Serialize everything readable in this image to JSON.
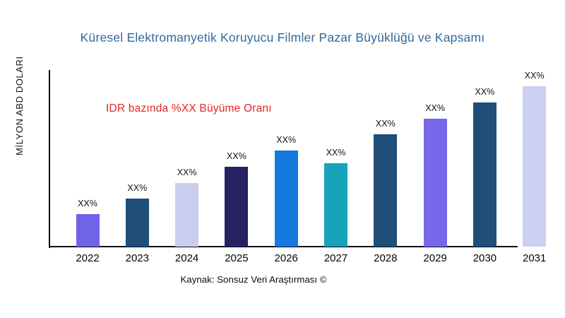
{
  "title": "Küresel Elektromanyetik Koruyucu Filmler Pazar Büyüklüğü ve Kapsamı",
  "title_color": "#2f6a9e",
  "y_axis_label": "MİLYON ABD DOLARI",
  "annotation": {
    "text": "IDR bazında %XX Büyüme Oranı",
    "color": "#e5252a"
  },
  "source": "Kaynak: Sonsuz Veri Araştırması ©",
  "chart_data": {
    "type": "bar",
    "title": "Küresel Elektromanyetik Koruyucu Filmler Pazar Büyüklüğü ve Kapsamı",
    "xlabel": "",
    "ylabel": "MİLYON ABD DOLARI",
    "grid": false,
    "legend": false,
    "categories": [
      "2022",
      "2023",
      "2024",
      "2025",
      "2026",
      "2027",
      "2028",
      "2029",
      "2030",
      "2031"
    ],
    "value_labels": [
      "XX%",
      "XX%",
      "XX%",
      "XX%",
      "XX%",
      "XX%",
      "XX%",
      "XX%",
      "XX%",
      "XX%"
    ],
    "bars": [
      {
        "year": "2022",
        "label": "XX%",
        "color": "#6f63e8",
        "height_pct": 18.4
      },
      {
        "year": "2023",
        "label": "XX%",
        "color": "#1f4e79",
        "height_pct": 27.2
      },
      {
        "year": "2024",
        "label": "XX%",
        "color": "#c9cdf0",
        "height_pct": 36.0
      },
      {
        "year": "2025",
        "label": "XX%",
        "color": "#252163",
        "height_pct": 45.2
      },
      {
        "year": "2026",
        "label": "XX%",
        "color": "#147ae0",
        "height_pct": 54.4
      },
      {
        "year": "2027",
        "label": "XX%",
        "color": "#17a3ba",
        "height_pct": 47.2
      },
      {
        "year": "2028",
        "label": "XX%",
        "color": "#1f4e79",
        "height_pct": 63.6
      },
      {
        "year": "2029",
        "label": "XX%",
        "color": "#7767e9",
        "height_pct": 72.4
      },
      {
        "year": "2030",
        "label": "XX%",
        "color": "#1f4e79",
        "height_pct": 81.6
      },
      {
        "year": "2031",
        "label": "XX%",
        "color": "#ccd0f2",
        "height_pct": 90.8
      }
    ]
  }
}
